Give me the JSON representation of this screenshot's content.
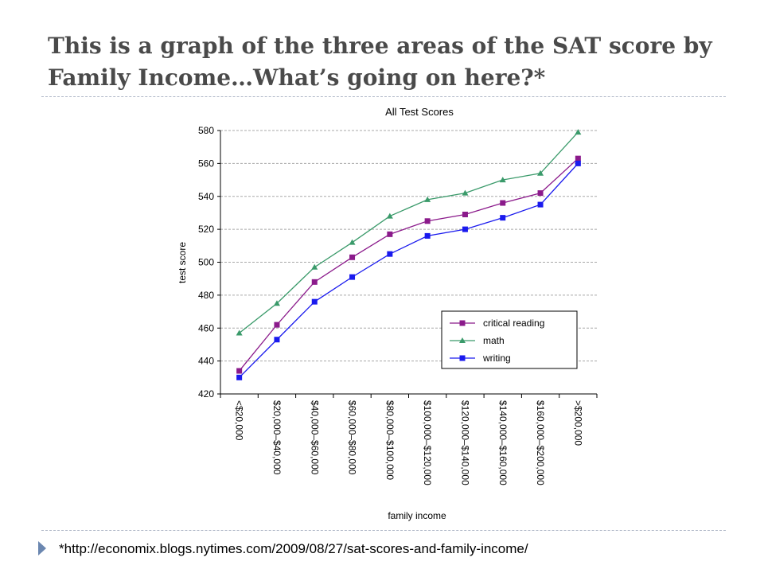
{
  "slide": {
    "title": "This is a graph of the three areas of the SAT score by Family Income…What’s going on here?*",
    "footnote": "*http://economix.blogs.nytimes.com/2009/08/27/sat-scores-and-family-income/"
  },
  "chart_data": {
    "type": "line",
    "title": "All Test Scores",
    "xlabel": "family income",
    "ylabel": "test score",
    "ylim": [
      420,
      580
    ],
    "yticks": [
      420,
      440,
      460,
      480,
      500,
      520,
      540,
      560,
      580
    ],
    "grid": true,
    "legend_position": "lower-right",
    "categories": [
      "<$20,000",
      "$20,000–$40,000",
      "$40,000–$60,000",
      "$60,000–$80,000",
      "$80,000–$100,000",
      "$100,000–$120,000",
      "$120,000–$140,000",
      "$140,000–$160,000",
      "$160,000–$200,000",
      ">$200,000"
    ],
    "series": [
      {
        "name": "critical reading",
        "color": "#8b1a8b",
        "marker": "square",
        "values": [
          434,
          462,
          488,
          503,
          517,
          525,
          529,
          536,
          542,
          563
        ]
      },
      {
        "name": "math",
        "color": "#3a9a6a",
        "marker": "triangle",
        "values": [
          457,
          475,
          497,
          512,
          528,
          538,
          542,
          550,
          554,
          579
        ]
      },
      {
        "name": "writing",
        "color": "#1a1aee",
        "marker": "square",
        "values": [
          430,
          453,
          476,
          491,
          505,
          516,
          520,
          527,
          535,
          560
        ]
      }
    ]
  }
}
